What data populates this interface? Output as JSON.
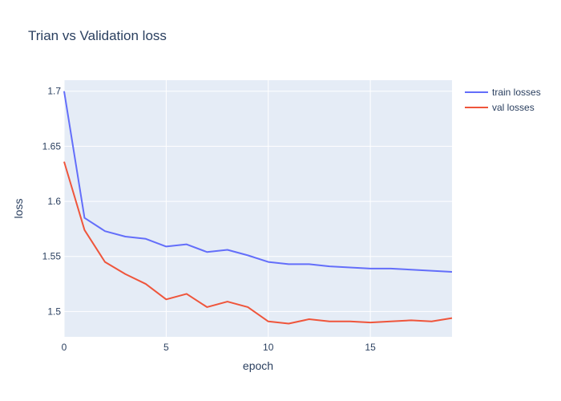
{
  "chart_data": {
    "type": "line",
    "title": "Trian vs Validation loss",
    "xlabel": "epoch",
    "ylabel": "loss",
    "xlim": [
      0,
      19
    ],
    "ylim": [
      1.477,
      1.71
    ],
    "x_ticks": [
      0,
      5,
      10,
      15
    ],
    "y_ticks": [
      1.5,
      1.55,
      1.6,
      1.65,
      1.7
    ],
    "y_tick_labels": [
      "1.5",
      "1.55",
      "1.6",
      "1.65",
      "1.7"
    ],
    "grid": true,
    "legend_position": "top-right",
    "x": [
      0,
      1,
      2,
      3,
      4,
      5,
      6,
      7,
      8,
      9,
      10,
      11,
      12,
      13,
      14,
      15,
      16,
      17,
      18,
      19
    ],
    "series": [
      {
        "name": "train losses",
        "color": "#636efa",
        "values": [
          1.7,
          1.585,
          1.573,
          1.568,
          1.566,
          1.559,
          1.561,
          1.554,
          1.556,
          1.551,
          1.545,
          1.543,
          1.543,
          1.541,
          1.54,
          1.539,
          1.539,
          1.538,
          1.537,
          1.536
        ]
      },
      {
        "name": "val losses",
        "color": "#ef553b",
        "values": [
          1.636,
          1.574,
          1.545,
          1.534,
          1.525,
          1.511,
          1.516,
          1.504,
          1.509,
          1.504,
          1.491,
          1.489,
          1.493,
          1.491,
          1.491,
          1.49,
          1.491,
          1.492,
          1.491,
          1.494
        ]
      }
    ]
  },
  "colors": {
    "plot_background": "#e5ecf6",
    "grid": "#ffffff",
    "text": "#2a3f5f"
  }
}
